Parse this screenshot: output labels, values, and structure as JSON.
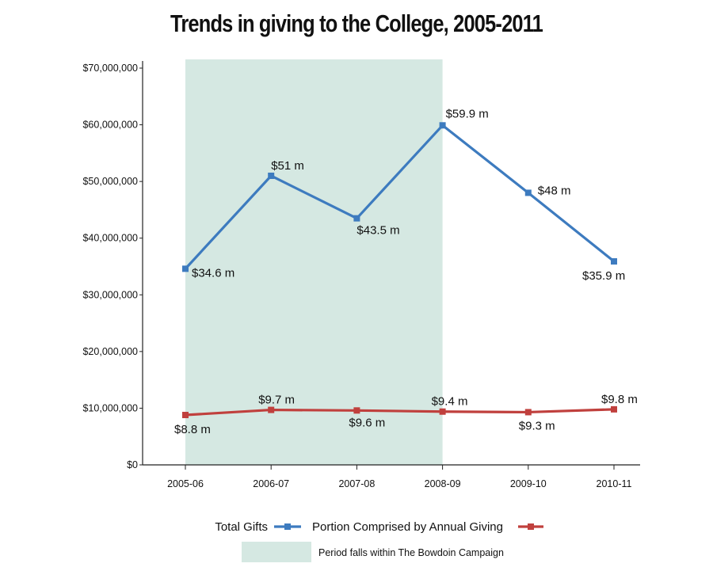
{
  "chart_data": {
    "type": "line",
    "title": "Trends in giving to the College, 2005-2011",
    "categories": [
      "2005-06",
      "2006-07",
      "2007-08",
      "2008-09",
      "2009-10",
      "2010-11"
    ],
    "ylim": [
      0,
      70000000
    ],
    "yticks": [
      0,
      10000000,
      20000000,
      30000000,
      40000000,
      50000000,
      60000000,
      70000000
    ],
    "ytick_labels": [
      "$0",
      "$10,000,000",
      "$20,000,000",
      "$30,000,000",
      "$40,000,000",
      "$50,000,000",
      "$60,000,000",
      "$70,000,000"
    ],
    "grid": false,
    "legend_placement": "bottom",
    "series": [
      {
        "name": "Total Gifts",
        "color": "#3d7bbf",
        "values": [
          34600000,
          51000000,
          43500000,
          59900000,
          48000000,
          35900000
        ],
        "labels": [
          "$34.6 m",
          "$51 m",
          "$43.5 m",
          "$59.9 m",
          "$48 m",
          "$35.9 m"
        ]
      },
      {
        "name": "Portion Comprised by Annual Giving",
        "color": "#c0403d",
        "values": [
          8800000,
          9700000,
          9600000,
          9400000,
          9300000,
          9800000
        ],
        "labels": [
          "$8.8 m",
          "$9.7 m",
          "$9.6 m",
          "$9.4 m",
          "$9.3 m",
          "$9.8 m"
        ]
      }
    ],
    "shaded_region": {
      "from_category": "2005-06",
      "to_category": "2008-09",
      "label": "Period falls within The Bowdoin Campaign",
      "color": "#d5e8e2"
    }
  }
}
